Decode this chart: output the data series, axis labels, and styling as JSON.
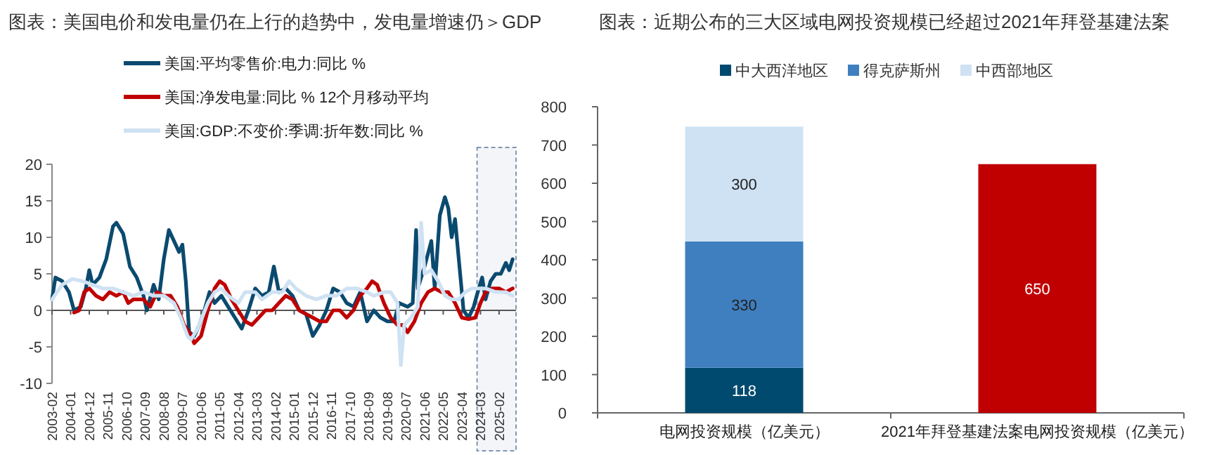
{
  "chart_data": [
    {
      "type": "line",
      "title": "图表：美国电价和发电量仍在上行的趋势中，发电量增速仍＞GDP",
      "legend": "top",
      "xlim": [
        "2003-02",
        "2025-12"
      ],
      "ylim": [
        -10,
        20
      ],
      "yticks": [
        -10,
        -5,
        0,
        5,
        10,
        15,
        20
      ],
      "xticks": [
        "2003-02",
        "2004-01",
        "2004-12",
        "2005-11",
        "2006-10",
        "2007-09",
        "2008-08",
        "2009-07",
        "2010-06",
        "2011-05",
        "2012-04",
        "2013-03",
        "2014-02",
        "2015-01",
        "2015-12",
        "2016-11",
        "2017-10",
        "2018-09",
        "2019-08",
        "2020-07",
        "2021-06",
        "2022-05",
        "2023-04",
        "2024-03",
        "2025-02"
      ],
      "bands": [
        {
          "axis": "x",
          "from": "2024-01",
          "to": "2025-12",
          "color": "#f3f5f9"
        }
      ],
      "series": [
        {
          "name": "美国:平均零售价:电力:同比 %",
          "color": "#0b4a6f",
          "x": [
            "2003-02",
            "2003-04",
            "2003-08",
            "2003-12",
            "2004-03",
            "2004-07",
            "2004-10",
            "2004-12",
            "2005-02",
            "2005-06",
            "2005-10",
            "2006-02",
            "2006-04",
            "2006-08",
            "2006-12",
            "2007-04",
            "2007-08",
            "2007-10",
            "2008-02",
            "2008-05",
            "2008-08",
            "2008-11",
            "2009-02",
            "2009-05",
            "2009-07",
            "2009-09",
            "2009-11",
            "2010-02",
            "2010-05",
            "2010-08",
            "2010-11",
            "2011-02",
            "2011-06",
            "2011-10",
            "2012-02",
            "2012-06",
            "2012-10",
            "2013-02",
            "2013-06",
            "2013-10",
            "2014-01",
            "2014-04",
            "2014-08",
            "2014-12",
            "2015-04",
            "2015-08",
            "2015-12",
            "2016-04",
            "2016-08",
            "2016-12",
            "2017-04",
            "2017-08",
            "2017-12",
            "2018-04",
            "2018-08",
            "2018-12",
            "2019-04",
            "2019-08",
            "2019-12",
            "2020-03",
            "2020-08",
            "2020-11",
            "2021-01",
            "2021-02",
            "2021-06",
            "2021-10",
            "2021-12",
            "2022-03",
            "2022-06",
            "2022-08",
            "2022-10",
            "2022-12",
            "2023-03",
            "2023-05",
            "2023-08",
            "2023-11",
            "2024-02",
            "2024-04",
            "2024-06",
            "2024-09",
            "2024-12",
            "2025-03",
            "2025-06",
            "2025-08",
            "2025-10"
          ],
          "values": [
            1.5,
            4.5,
            4,
            2.5,
            0,
            0.5,
            3,
            5.5,
            3.5,
            4.5,
            7,
            11.5,
            12,
            10.5,
            6,
            4.5,
            2,
            0,
            3.5,
            1.5,
            7,
            11,
            9.5,
            8,
            9,
            4,
            -3,
            -3.5,
            -2,
            0,
            2.5,
            1,
            2,
            0.5,
            -1,
            -2.5,
            0,
            3,
            2,
            2.5,
            6,
            2.5,
            3,
            2,
            0,
            -0.5,
            -3.5,
            -2,
            0,
            3,
            2.5,
            1,
            0.5,
            2.5,
            -1.5,
            0,
            -1,
            -1.5,
            -1.5,
            1,
            0.5,
            1,
            11,
            3,
            6,
            9.5,
            3,
            13,
            15.5,
            14,
            10,
            12.5,
            5,
            0,
            -1,
            0.5,
            3,
            4.5,
            1.5,
            4,
            5,
            5,
            6.5,
            5.5,
            7
          ]
        },
        {
          "name": "美国:净发电量:同比 % 12个月移动平均",
          "color": "#c00000",
          "x": [
            "2004-03",
            "2004-06",
            "2004-09",
            "2004-12",
            "2005-04",
            "2005-08",
            "2005-12",
            "2006-04",
            "2006-08",
            "2006-11",
            "2007-02",
            "2007-08",
            "2007-12",
            "2008-04",
            "2008-08",
            "2008-12",
            "2009-04",
            "2009-08",
            "2009-11",
            "2010-02",
            "2010-06",
            "2010-10",
            "2011-02",
            "2011-05",
            "2011-08",
            "2011-12",
            "2012-04",
            "2012-08",
            "2012-12",
            "2013-04",
            "2013-08",
            "2013-12",
            "2014-04",
            "2014-08",
            "2014-12",
            "2015-04",
            "2015-08",
            "2015-12",
            "2016-04",
            "2016-08",
            "2016-12",
            "2017-04",
            "2017-08",
            "2017-12",
            "2018-04",
            "2018-08",
            "2018-11",
            "2019-02",
            "2019-06",
            "2019-10",
            "2020-02",
            "2020-05",
            "2020-08",
            "2020-12",
            "2021-04",
            "2021-08",
            "2021-12",
            "2022-04",
            "2022-08",
            "2022-12",
            "2023-04",
            "2023-08",
            "2023-12",
            "2024-03",
            "2024-06",
            "2024-10",
            "2025-02",
            "2025-06",
            "2025-10"
          ],
          "values": [
            -0.3,
            0,
            2.5,
            3,
            2,
            1.5,
            2.5,
            2,
            2.5,
            1,
            1.5,
            1.5,
            0.5,
            2.5,
            2,
            2,
            0.5,
            -2,
            -3,
            -4.5,
            -3.5,
            0,
            3,
            4,
            3.5,
            1.5,
            0,
            -1.5,
            -2,
            -1,
            0,
            0,
            1,
            2,
            1.5,
            0,
            -0.5,
            -1,
            -1.5,
            -1.5,
            0,
            0,
            -1,
            0,
            2,
            3,
            4,
            3.5,
            1,
            -1,
            -2,
            -2,
            -3,
            -1.5,
            1,
            2.5,
            3,
            2.5,
            2.5,
            1,
            -1,
            -1.2,
            -1,
            1,
            2.5,
            3,
            3,
            2.5,
            3
          ]
        },
        {
          "name": "美国:GDP:不变价:季调:折年数:同比 %",
          "color": "#cfe2f3",
          "x": [
            "2003-02",
            "2003-08",
            "2004-02",
            "2004-08",
            "2005-02",
            "2005-08",
            "2006-02",
            "2006-08",
            "2007-02",
            "2007-08",
            "2008-02",
            "2008-08",
            "2009-02",
            "2009-06",
            "2009-10",
            "2009-12",
            "2010-04",
            "2010-10",
            "2011-02",
            "2011-06",
            "2011-10",
            "2012-04",
            "2012-08",
            "2013-02",
            "2013-06",
            "2013-12",
            "2014-06",
            "2014-10",
            "2015-02",
            "2015-08",
            "2016-02",
            "2016-08",
            "2017-02",
            "2017-08",
            "2018-02",
            "2018-08",
            "2018-12",
            "2019-06",
            "2019-10",
            "2020-02",
            "2020-04",
            "2020-06",
            "2020-10",
            "2021-02",
            "2021-04",
            "2021-06",
            "2021-10",
            "2022-02",
            "2022-06",
            "2022-10",
            "2023-02",
            "2023-06",
            "2023-10",
            "2024-02",
            "2024-06",
            "2024-12",
            "2025-06",
            "2025-10"
          ],
          "values": [
            1.5,
            3.5,
            4.3,
            4,
            3.5,
            3,
            3,
            2.5,
            2,
            2.5,
            2,
            2,
            1,
            -1,
            -3.5,
            -4,
            -2.5,
            1,
            2.5,
            3,
            2,
            1,
            2.5,
            2.5,
            1.5,
            2.5,
            2.5,
            4,
            3,
            2,
            1.5,
            2,
            2,
            3,
            3,
            2.5,
            2,
            2.5,
            2.5,
            1,
            -7.5,
            -2,
            -1,
            0.5,
            12,
            5,
            5.5,
            4,
            2,
            1.5,
            1.5,
            2.5,
            3,
            3,
            3,
            2.5,
            2.5,
            2
          ]
        }
      ]
    },
    {
      "type": "bar",
      "title": "图表：近期公布的三大区域电网投资规模已经超过2021年拜登基建法案",
      "legend": "top",
      "stacked": true,
      "data_labels": true,
      "ylim": [
        0,
        800
      ],
      "yticks": [
        0,
        100,
        200,
        300,
        400,
        500,
        600,
        700,
        800
      ],
      "categories": [
        "电网投资规模（亿美元）",
        "2021年拜登基建法案电网投资规模（亿美元）"
      ],
      "series": [
        {
          "name": "中大西洋地区",
          "color": "#004a6f",
          "values": [
            118,
            null
          ]
        },
        {
          "name": "得克萨斯州",
          "color": "#3f7fbf",
          "values": [
            330,
            null
          ]
        },
        {
          "name": "中西部地区",
          "color": "#cfe2f3",
          "values": [
            300,
            null
          ]
        },
        {
          "color": "#c00000",
          "values": [
            null,
            650
          ]
        }
      ]
    }
  ]
}
